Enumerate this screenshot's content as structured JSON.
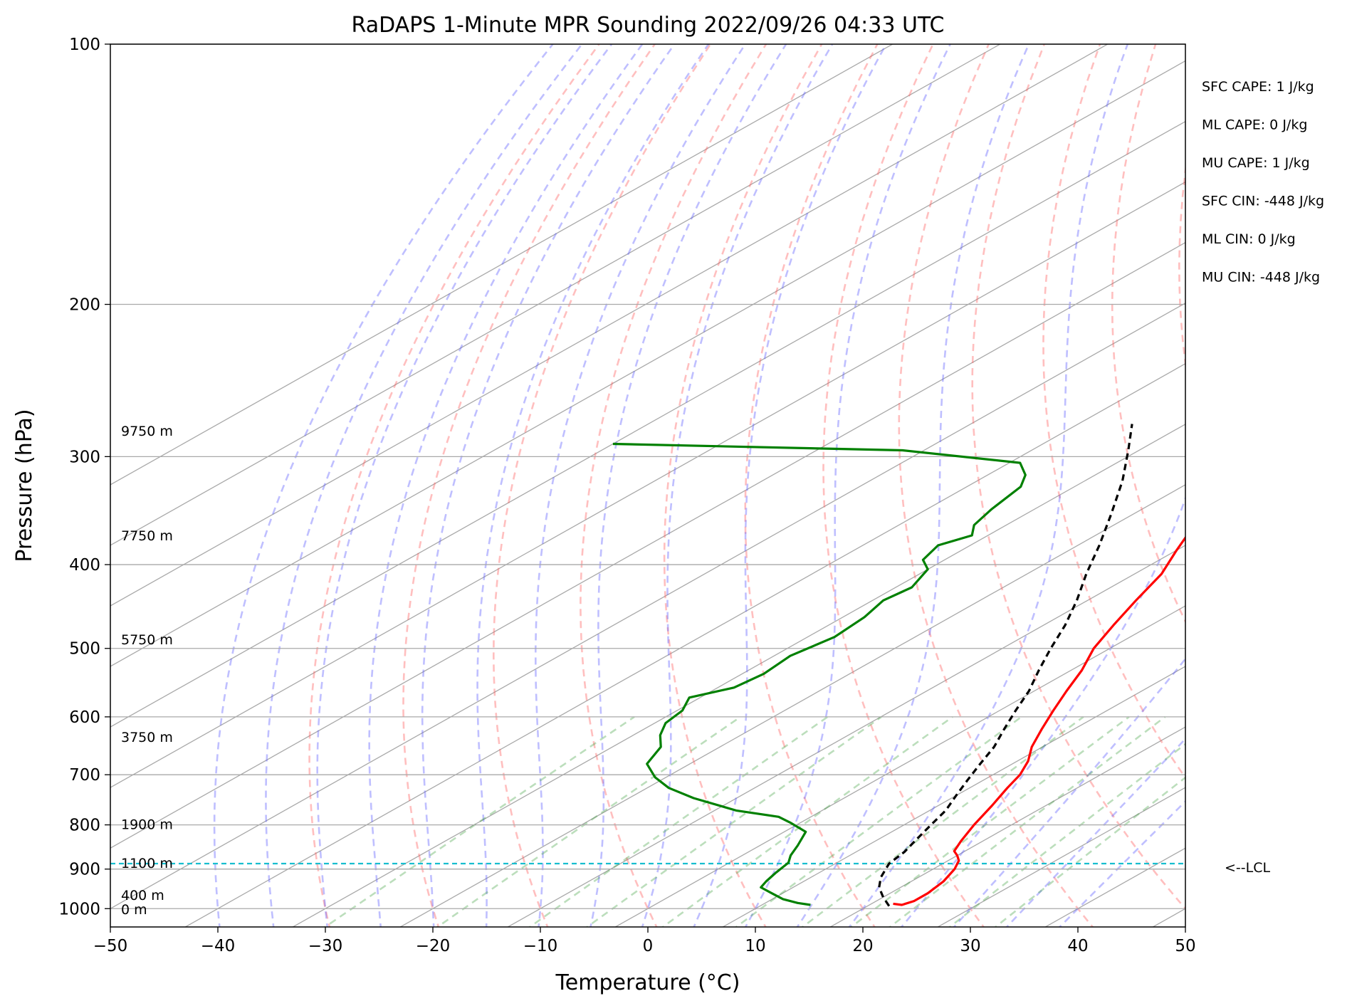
{
  "chart_data": {
    "type": "line",
    "subtype": "skew-t log-p sounding",
    "title": "RaDAPS 1-Minute MPR Sounding 2022/09/26 04:33 UTC",
    "xlabel": "Temperature (°C)",
    "ylabel": "Pressure (hPa)",
    "xlim": [
      -50,
      50
    ],
    "ylim": [
      1050,
      100
    ],
    "y_scale": "log",
    "x_ticks": [
      -50,
      -40,
      -30,
      -20,
      -10,
      0,
      10,
      20,
      30,
      40,
      50
    ],
    "x_tick_labels": [
      "−50",
      "−40",
      "−30",
      "−20",
      "−10",
      "0",
      "10",
      "20",
      "30",
      "40",
      "50"
    ],
    "y_ticks": [
      100,
      200,
      300,
      400,
      500,
      600,
      700,
      800,
      900,
      1000
    ],
    "y_tick_labels": [
      "100",
      "200",
      "300",
      "400",
      "500",
      "600",
      "700",
      "800",
      "900",
      "1000"
    ],
    "grid": true,
    "skew_deg_per_log_p": 62,
    "height_labels": [
      {
        "text": "9750 m",
        "p": 280
      },
      {
        "text": "7750 m",
        "p": 370
      },
      {
        "text": "5750 m",
        "p": 488
      },
      {
        "text": "3750 m",
        "p": 633
      },
      {
        "text": "1900 m",
        "p": 798
      },
      {
        "text": "1100 m",
        "p": 885
      },
      {
        "text": "400 m",
        "p": 964
      },
      {
        "text": "0 m",
        "p": 1001
      }
    ],
    "lcl": {
      "p": 887,
      "label": "<--LCL"
    },
    "indices": [
      "SFC CAPE: 1 J/kg",
      "ML CAPE: 0 J/kg",
      "MU CAPE: 1 J/kg",
      "SFC CIN: -448 J/kg",
      "ML CIN: 0 J/kg",
      "MU CIN: -448 J/kg"
    ],
    "series": [
      {
        "role": "temperature",
        "color": "#ff0000",
        "p": [
          987,
          990,
          980,
          960,
          930,
          900,
          880,
          868,
          858,
          836,
          800,
          760,
          725,
          700,
          675,
          650,
          620,
          590,
          560,
          530,
          500,
          470,
          440,
          410,
          385,
          365,
          350,
          335,
          318,
          300,
          288,
          278,
          270
        ],
        "t": [
          22,
          23,
          23.5,
          23.5,
          23,
          22,
          21,
          20,
          19,
          18,
          16.5,
          15,
          13.5,
          12.5,
          11,
          9,
          7,
          5,
          3,
          1,
          -1.5,
          -3.5,
          -5.5,
          -7.5,
          -10,
          -12,
          -13.5,
          -15,
          -17,
          -18.5,
          -20,
          -21.5,
          -23
        ]
      },
      {
        "role": "dewpoint",
        "color": "#008000",
        "p": [
          990,
          985,
          975,
          960,
          945,
          930,
          910,
          885,
          868,
          845,
          815,
          795,
          783,
          770,
          745,
          725,
          705,
          680,
          650,
          630,
          610,
          590,
          570,
          555,
          535,
          510,
          485,
          460,
          440,
          425,
          405,
          395,
          380,
          370,
          360,
          345,
          325,
          315,
          305,
          295,
          290
        ],
        "t": [
          14.5,
          13,
          11,
          9,
          7,
          6.5,
          6,
          5.5,
          4.5,
          3.5,
          2,
          -1,
          -3,
          -8,
          -14,
          -18,
          -21,
          -24,
          -25.5,
          -27.5,
          -29,
          -29.5,
          -31,
          -28.5,
          -28,
          -28.5,
          -27.5,
          -28,
          -29,
          -28.5,
          -30,
          -32,
          -33,
          -31.5,
          -33,
          -34,
          -35,
          -36.5,
          -39,
          -52,
          -80
        ]
      },
      {
        "role": "parcel",
        "color": "#000000",
        "p": [
          993,
          970,
          945,
          920,
          887,
          860,
          830,
          800,
          770,
          740,
          710,
          680,
          650,
          620,
          590,
          560,
          530,
          500,
          470,
          440,
          410,
          380,
          350,
          320,
          295,
          275
        ],
        "t": [
          22,
          20,
          18,
          16.5,
          15,
          14.5,
          13.5,
          12.5,
          11.5,
          10,
          8.5,
          7,
          5.5,
          3.5,
          1.5,
          -0.5,
          -3,
          -5.5,
          -8,
          -11,
          -14.5,
          -18,
          -22,
          -26.5,
          -31,
          -35
        ]
      }
    ]
  }
}
